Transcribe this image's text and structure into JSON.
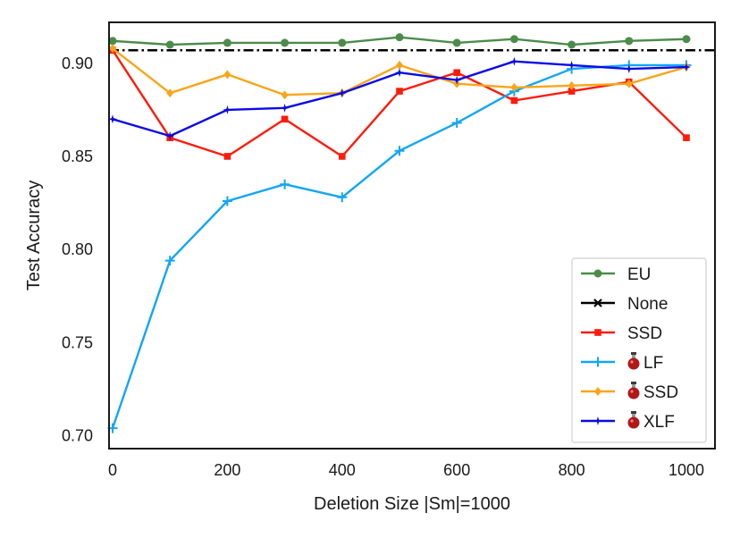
{
  "chart_data": {
    "type": "line",
    "title": "",
    "xlabel": "Deletion Size |Sm|=1000",
    "ylabel": "Test Accuracy",
    "xlim": [
      0,
      1000
    ],
    "ylim": [
      0.693,
      0.922
    ],
    "x": [
      0,
      100,
      200,
      300,
      400,
      500,
      600,
      700,
      800,
      900,
      1000
    ],
    "xticks": [
      0,
      200,
      400,
      600,
      800,
      1000
    ],
    "yticks": [
      0.7,
      0.75,
      0.8,
      0.85,
      0.9
    ],
    "ytick_labels": [
      "0.70",
      "0.75",
      "0.80",
      "0.85",
      "0.90"
    ],
    "grid": false,
    "legend_position": "lower-right",
    "series": [
      {
        "name": "EU",
        "color": "#4c8c4a",
        "marker": "circle",
        "line": "solid",
        "values": [
          0.912,
          0.91,
          0.911,
          0.911,
          0.911,
          0.914,
          0.911,
          0.913,
          0.91,
          0.912,
          0.913
        ]
      },
      {
        "name": "None",
        "color": "#000000",
        "marker": "x",
        "line": "dashdot",
        "legend_marker_only": true,
        "values": [
          0.907,
          0.907,
          0.907,
          0.907,
          0.907,
          0.907,
          0.907,
          0.907,
          0.907,
          0.907,
          0.907
        ]
      },
      {
        "name": "SSD",
        "color": "#ff1a0a",
        "marker": "square",
        "line": "solid",
        "values": [
          0.907,
          0.86,
          0.85,
          0.87,
          0.85,
          0.885,
          0.895,
          0.88,
          0.885,
          0.89,
          0.86
        ]
      },
      {
        "name": "LF",
        "color": "#12a6f5",
        "marker": "plus",
        "line": "solid",
        "potion_icon": true,
        "values": [
          0.704,
          0.794,
          0.826,
          0.835,
          0.828,
          0.853,
          0.868,
          0.885,
          0.897,
          0.899,
          0.899
        ]
      },
      {
        "name": "SSD",
        "color": "#f9a51a",
        "marker": "diamond",
        "line": "solid",
        "potion_icon": true,
        "values": [
          0.908,
          0.884,
          0.894,
          0.883,
          0.884,
          0.899,
          0.889,
          0.887,
          0.888,
          0.889,
          0.898
        ]
      },
      {
        "name": "XLF",
        "color": "#0a0ae6",
        "marker": "star",
        "line": "solid",
        "potion_icon": true,
        "values": [
          0.87,
          0.861,
          0.875,
          0.876,
          0.884,
          0.895,
          0.891,
          0.901,
          0.899,
          0.897,
          0.898
        ]
      }
    ]
  }
}
